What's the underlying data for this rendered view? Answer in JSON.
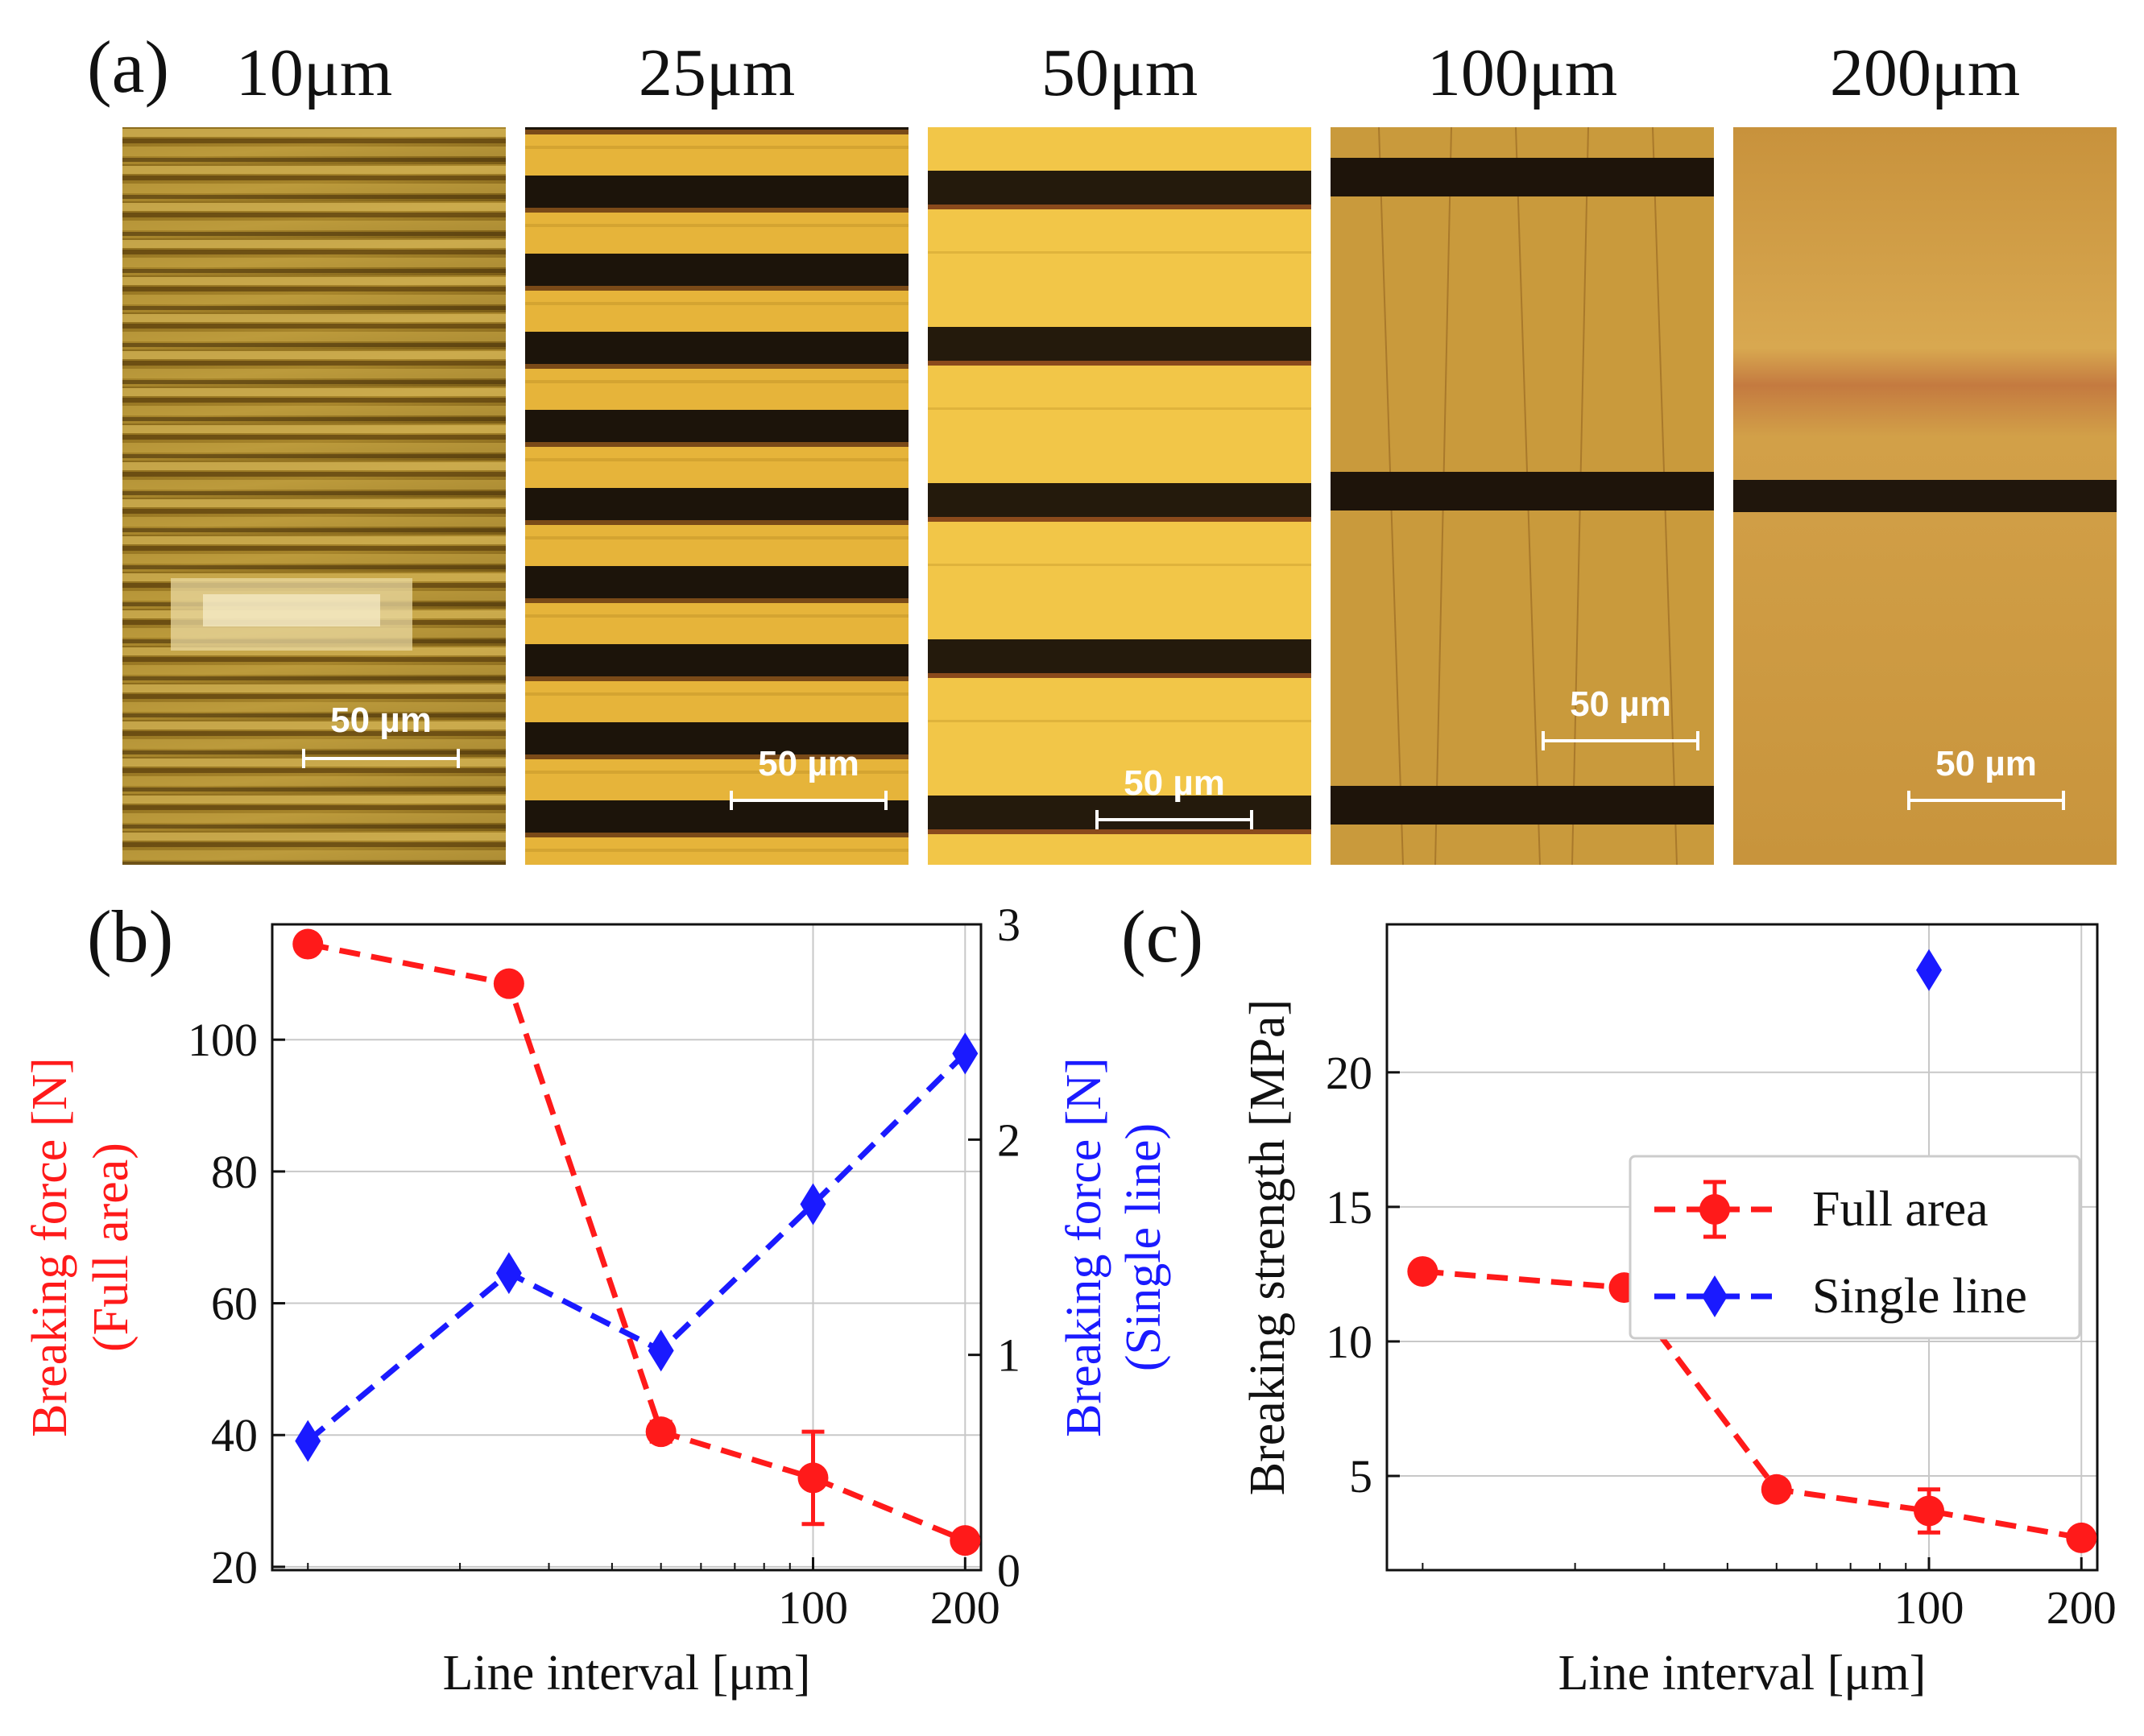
{
  "panel_a": {
    "label": "(a)",
    "images": [
      {
        "title": "10μm",
        "scale_label": "50 µm",
        "description": "micrograph"
      },
      {
        "title": "25μm",
        "scale_label": "50 µm",
        "description": "micrograph"
      },
      {
        "title": "50μm",
        "scale_label": "50 µm",
        "description": "micrograph"
      },
      {
        "title": "100μm",
        "scale_label": "50 µm",
        "description": "micrograph"
      },
      {
        "title": "200μm",
        "scale_label": "50 µm",
        "description": "micrograph"
      }
    ]
  },
  "panel_b": {
    "label": "(b)"
  },
  "panel_c": {
    "label": "(c)"
  },
  "colors": {
    "full_area": "#ff1a1a",
    "single_line": "#1a1aff",
    "grid": "#c8c8c8",
    "axis": "#111111"
  },
  "chart_data": [
    {
      "id": "b",
      "type": "line",
      "xlabel": "Line interval [μm]",
      "ylabel": "Breaking force [N]",
      "ylabel2": "(Full area)",
      "y2label": "Breaking force [N]",
      "y2label2": "(Single line)",
      "xscale": "log",
      "xlim": [
        8.5,
        215
      ],
      "x_ticks": [
        100,
        200
      ],
      "x_tick_labels": [
        "100",
        "200"
      ],
      "ylim": [
        19.5,
        117.5
      ],
      "y_ticks": [
        20,
        40,
        60,
        80,
        100
      ],
      "y_tick_labels": [
        "20",
        "40",
        "60",
        "80",
        "100"
      ],
      "y2lim": [
        0,
        3
      ],
      "y2_ticks": [
        0,
        1,
        2,
        3
      ],
      "y2_tick_labels": [
        "0",
        "1",
        "2",
        "3"
      ],
      "grid": true,
      "series": [
        {
          "name": "Full area",
          "axis": "left",
          "marker": "circle",
          "x": [
            10,
            25,
            50,
            100,
            200
          ],
          "values": [
            114.5,
            108.5,
            40.5,
            33.5,
            24
          ],
          "err": [
            0,
            0,
            1.5,
            7,
            0
          ]
        },
        {
          "name": "Single line",
          "axis": "right",
          "marker": "diamond",
          "x": [
            10,
            25,
            50,
            100,
            200
          ],
          "values": [
            0.6,
            1.38,
            1.02,
            1.7,
            2.4
          ]
        }
      ]
    },
    {
      "id": "c",
      "type": "line",
      "xlabel": "Line interval [μm]",
      "ylabel": "Breaking strength [MPa]",
      "xscale": "log",
      "xlim": [
        8.5,
        215
      ],
      "x_ticks": [
        100,
        200
      ],
      "x_tick_labels": [
        "100",
        "200"
      ],
      "ylim": [
        1.5,
        25.5
      ],
      "y_ticks": [
        5,
        10,
        15,
        20
      ],
      "y_tick_labels": [
        "5",
        "10",
        "15",
        "20"
      ],
      "grid": true,
      "legend": {
        "location": "center-right",
        "entries": [
          "Full area",
          "Single line"
        ]
      },
      "series": [
        {
          "name": "Full area",
          "marker": "circle",
          "x": [
            10,
            25,
            50,
            100,
            200
          ],
          "values": [
            12.6,
            12.0,
            4.5,
            3.7,
            2.7
          ],
          "err": [
            0,
            0,
            0,
            0.8,
            0
          ]
        },
        {
          "name": "Single line",
          "marker": "diamond",
          "x": [
            100
          ],
          "values": [
            23.8
          ]
        }
      ]
    }
  ]
}
